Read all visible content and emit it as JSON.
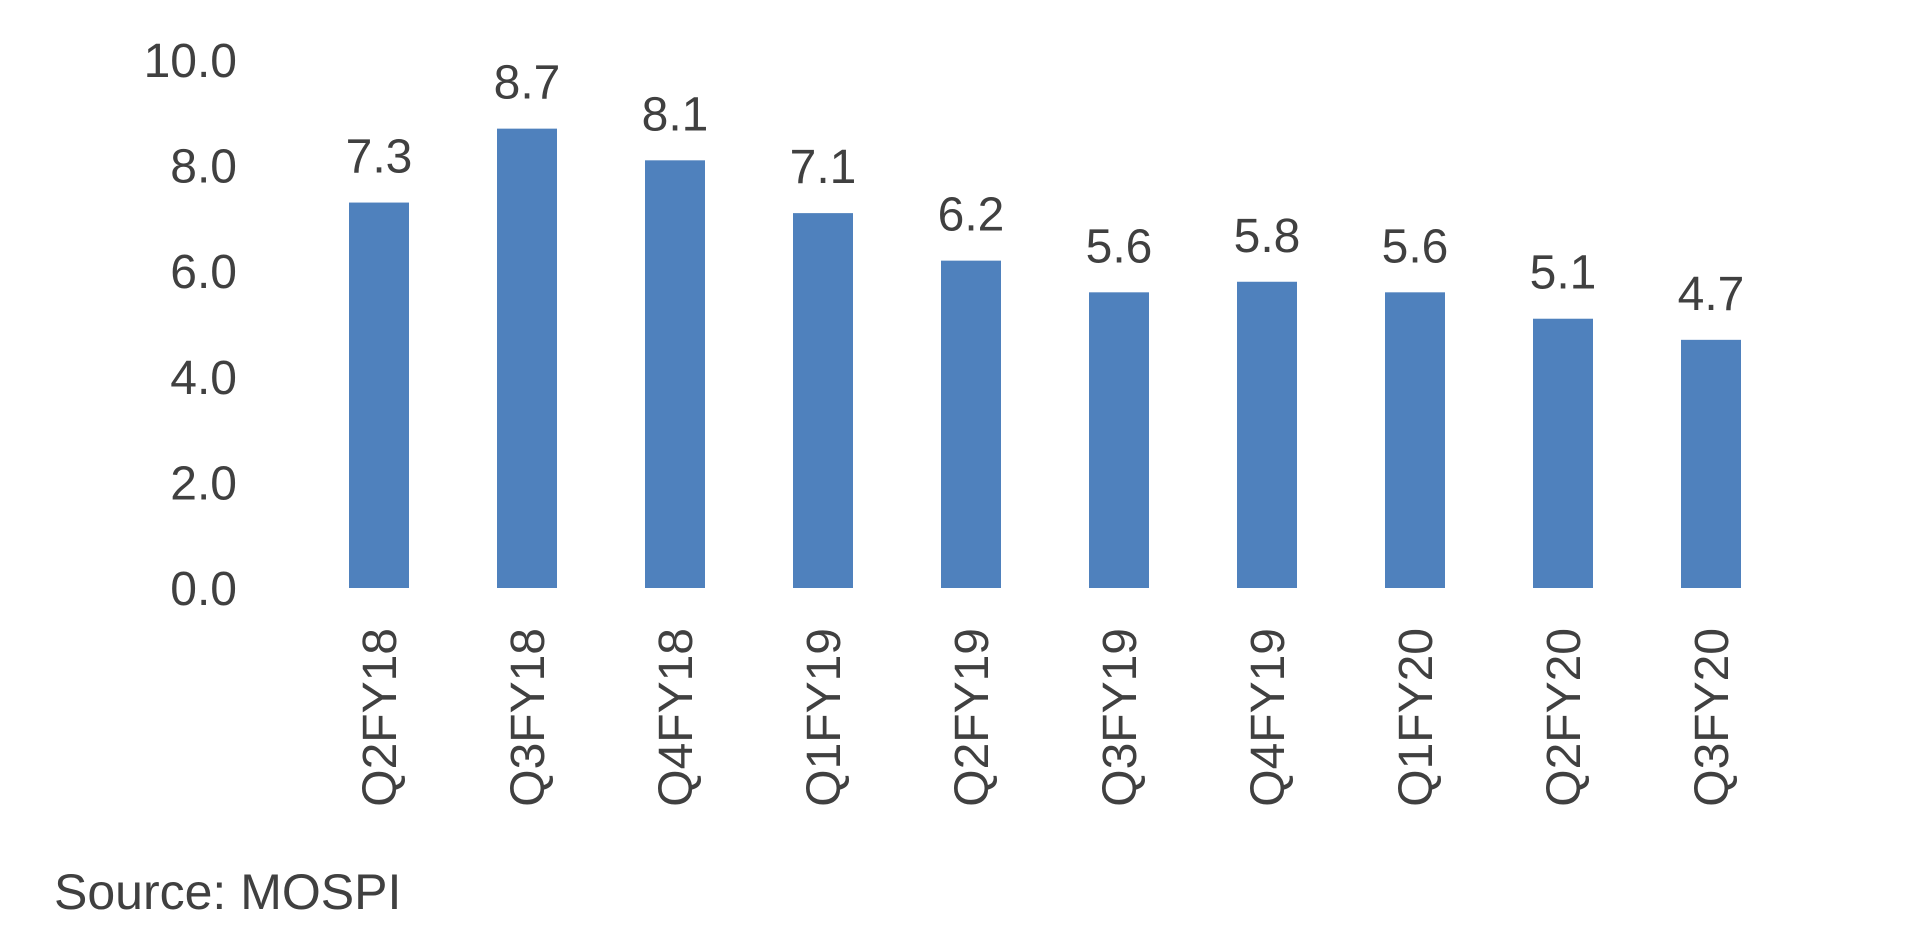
{
  "chart_data": {
    "type": "bar",
    "title": "",
    "xlabel": "",
    "ylabel": "",
    "categories": [
      "Q2FY18",
      "Q3FY18",
      "Q4FY18",
      "Q1FY19",
      "Q2FY19",
      "Q3FY19",
      "Q4FY19",
      "Q1FY20",
      "Q2FY20",
      "Q3FY20"
    ],
    "values": [
      7.3,
      8.7,
      8.1,
      7.1,
      6.2,
      5.6,
      5.8,
      5.6,
      5.1,
      4.7
    ],
    "data_labels": [
      "7.3",
      "8.7",
      "8.1",
      "7.1",
      "6.2",
      "5.6",
      "5.8",
      "5.6",
      "5.1",
      "4.7"
    ],
    "ylim": [
      0,
      10
    ],
    "yticks": [
      0,
      2,
      4,
      6,
      8,
      10
    ],
    "ytick_labels": [
      "0.0",
      "2.0",
      "4.0",
      "6.0",
      "8.0",
      "10.0"
    ],
    "grid": false,
    "legend": "none",
    "bar_color": "#4f81bd",
    "text_color": "#404040"
  },
  "source_note": "Source: MOSPI"
}
